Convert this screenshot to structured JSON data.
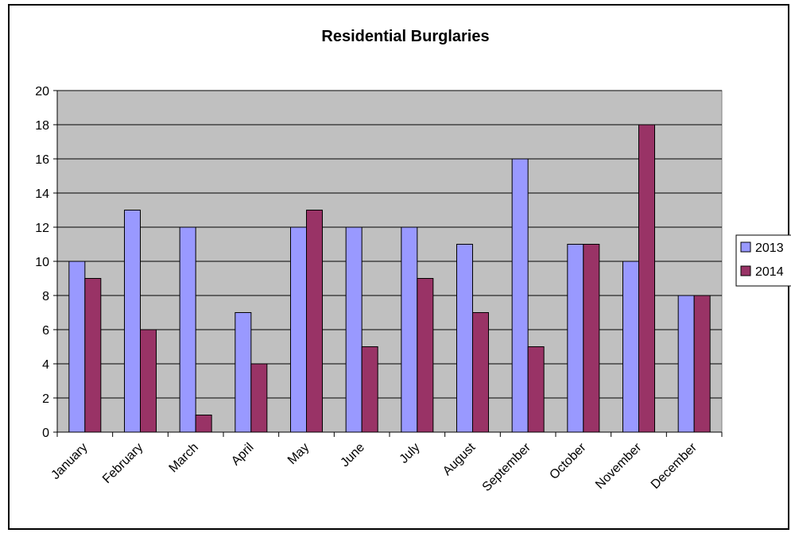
{
  "chart_data": {
    "type": "bar",
    "title": "Residential Burglaries",
    "xlabel": "",
    "ylabel": "",
    "categories": [
      "January",
      "February",
      "March",
      "April",
      "May",
      "June",
      "July",
      "August",
      "September",
      "October",
      "November",
      "December"
    ],
    "series": [
      {
        "name": "2013",
        "color": "#9999ff",
        "values": [
          10,
          13,
          12,
          7,
          12,
          12,
          12,
          11,
          16,
          11,
          10,
          8
        ]
      },
      {
        "name": "2014",
        "color": "#993366",
        "values": [
          9,
          6,
          1,
          4,
          13,
          5,
          9,
          7,
          5,
          11,
          18,
          8
        ]
      }
    ],
    "ylim": [
      0,
      20
    ],
    "yticks": [
      0,
      2,
      4,
      6,
      8,
      10,
      12,
      14,
      16,
      18,
      20
    ],
    "grid": true,
    "plot_background": "#c0c0c0",
    "legend_position": "right"
  }
}
